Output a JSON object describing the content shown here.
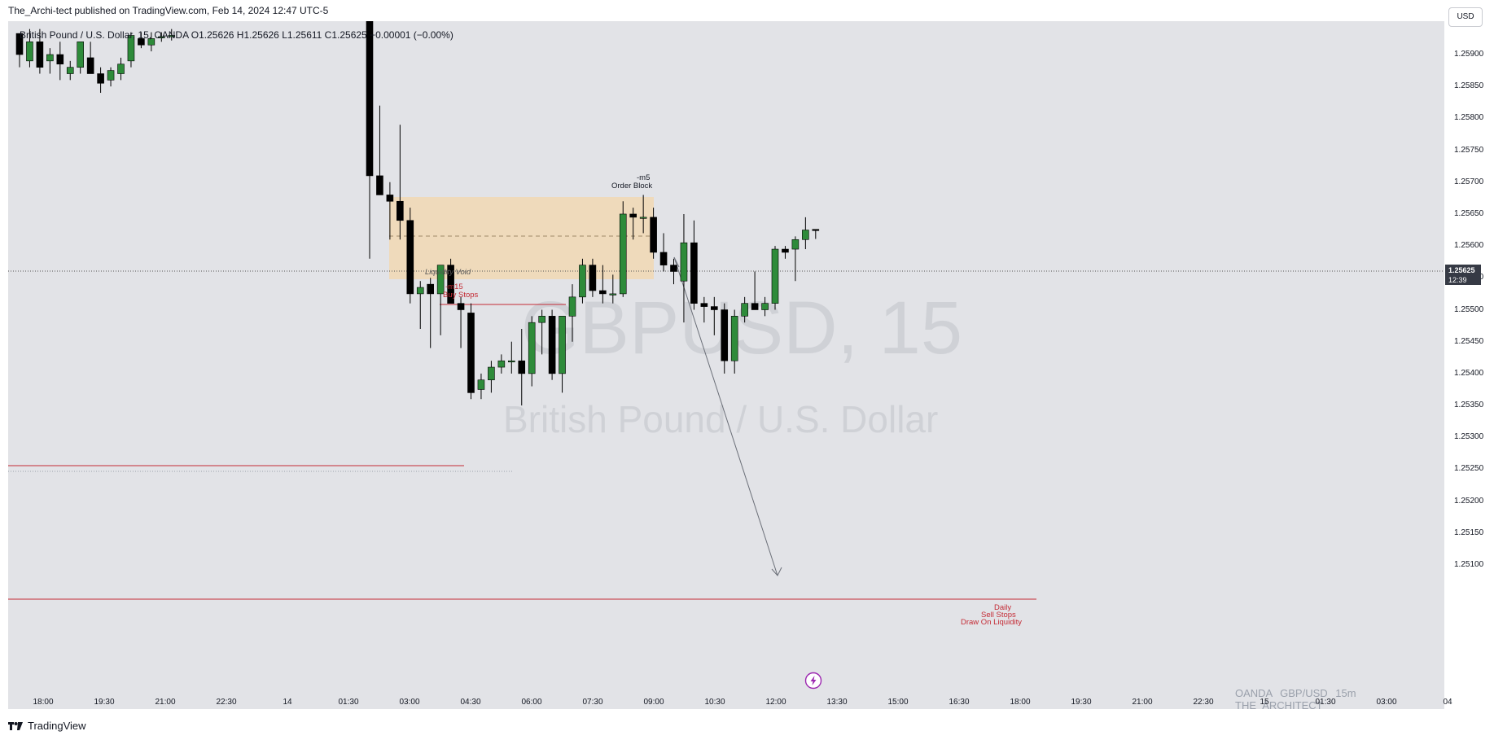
{
  "header": {
    "published_by": "The_Archi-tect published on TradingView.com, Feb 14, 2024 12:47 UTC-5"
  },
  "legend": {
    "symbol": "British Pound / U.S. Dollar, 15, OANDA",
    "ohlc": "O1.25626 H1.25626 L1.25611 C1.25625",
    "change": "−0.00001 (−0.00%)"
  },
  "price_scale": {
    "currency_button": "USD",
    "ticks": [
      "1.25900",
      "1.25850",
      "1.25800",
      "1.25750",
      "1.25700",
      "1.25650",
      "1.25600",
      "1.25550",
      "1.25500",
      "1.25450",
      "1.25400",
      "1.25350",
      "1.25300",
      "1.25250",
      "1.25200",
      "1.25150",
      "1.25100"
    ],
    "current_price": "1.25625",
    "countdown": "12:39"
  },
  "time_scale": {
    "ticks": [
      "18:00",
      "19:30",
      "21:00",
      "22:30",
      "14",
      "01:30",
      "03:00",
      "04:30",
      "06:00",
      "07:30",
      "09:00",
      "10:30",
      "12:00",
      "13:30",
      "15:00",
      "16:30",
      "18:00",
      "19:30",
      "21:00",
      "22:30",
      "15",
      "01:30",
      "03:00",
      "04"
    ]
  },
  "watermark": {
    "symbol": "GBPUSD, 15",
    "description": "British Pound / U.S. Dollar"
  },
  "annotations": {
    "order_block_tf": "-m5",
    "order_block": "Order Block",
    "liquidity_void": "Liquidity Void",
    "buy_stops_tf": "-m15",
    "buy_stops": "Buy Stops",
    "daily": "Daily",
    "sell_stops": "Sell Stops",
    "draw_on_liquidity": "Draw On Liquidity"
  },
  "branding": {
    "chart_tag": "OANDA   GBP/USD 15m   THE_ARCHITECT",
    "footer_logo": "TradingView"
  },
  "colors": {
    "background": "#e2e3e7",
    "bull": "#2e8b3a",
    "bear": "#000000",
    "level_red": "#c42b35",
    "order_block_fill": "#f2d7b0"
  },
  "chart_data": {
    "type": "candlestick",
    "series": [
      {
        "o": 1.25933,
        "h": 1.25933,
        "l": 1.2588,
        "c": 1.259
      },
      {
        "o": 1.2589,
        "h": 1.2594,
        "l": 1.2588,
        "c": 1.2592
      },
      {
        "o": 1.2592,
        "h": 1.2594,
        "l": 1.2587,
        "c": 1.2588
      },
      {
        "o": 1.2589,
        "h": 1.2591,
        "l": 1.2587,
        "c": 1.259
      },
      {
        "o": 1.259,
        "h": 1.2592,
        "l": 1.2586,
        "c": 1.25885
      },
      {
        "o": 1.2587,
        "h": 1.2589,
        "l": 1.2586,
        "c": 1.2588
      },
      {
        "o": 1.2588,
        "h": 1.2592,
        "l": 1.2587,
        "c": 1.2592
      },
      {
        "o": 1.25895,
        "h": 1.2592,
        "l": 1.2588,
        "c": 1.2587
      },
      {
        "o": 1.2587,
        "h": 1.2588,
        "l": 1.2584,
        "c": 1.25855
      },
      {
        "o": 1.2586,
        "h": 1.2588,
        "l": 1.2585,
        "c": 1.25875
      },
      {
        "o": 1.2587,
        "h": 1.25895,
        "l": 1.2586,
        "c": 1.25885
      },
      {
        "o": 1.2589,
        "h": 1.25935,
        "l": 1.2588,
        "c": 1.2593
      },
      {
        "o": 1.25925,
        "h": 1.25935,
        "l": 1.2591,
        "c": 1.25915
      },
      {
        "o": 1.25915,
        "h": 1.25935,
        "l": 1.25905,
        "c": 1.25925
      },
      {
        "o": 1.25928,
        "h": 1.25935,
        "l": 1.2592,
        "c": 1.25928
      },
      {
        "o": 1.25928,
        "h": 1.2594,
        "l": 1.25922,
        "c": 1.2593
      },
      {
        "o": 1.2596,
        "h": 1.25975,
        "l": 1.2558,
        "c": 1.2571
      },
      {
        "o": 1.2571,
        "h": 1.2582,
        "l": 1.2568,
        "c": 1.2568
      },
      {
        "o": 1.2568,
        "h": 1.257,
        "l": 1.2561,
        "c": 1.2567
      },
      {
        "o": 1.2567,
        "h": 1.2579,
        "l": 1.2561,
        "c": 1.2564
      },
      {
        "o": 1.2564,
        "h": 1.2566,
        "l": 1.2551,
        "c": 1.25525
      },
      {
        "o": 1.25525,
        "h": 1.25545,
        "l": 1.2547,
        "c": 1.25535
      },
      {
        "o": 1.2554,
        "h": 1.2555,
        "l": 1.2544,
        "c": 1.25525
      },
      {
        "o": 1.25525,
        "h": 1.2555,
        "l": 1.2546,
        "c": 1.2557
      },
      {
        "o": 1.2557,
        "h": 1.2558,
        "l": 1.2552,
        "c": 1.2551
      },
      {
        "o": 1.2551,
        "h": 1.2552,
        "l": 1.2544,
        "c": 1.255
      },
      {
        "o": 1.25495,
        "h": 1.2551,
        "l": 1.2536,
        "c": 1.2537
      },
      {
        "o": 1.25375,
        "h": 1.254,
        "l": 1.2536,
        "c": 1.2539
      },
      {
        "o": 1.2539,
        "h": 1.2542,
        "l": 1.2537,
        "c": 1.2541
      },
      {
        "o": 1.2541,
        "h": 1.2543,
        "l": 1.254,
        "c": 1.2542
      },
      {
        "o": 1.2542,
        "h": 1.2545,
        "l": 1.254,
        "c": 1.2542
      },
      {
        "o": 1.2542,
        "h": 1.2547,
        "l": 1.2535,
        "c": 1.254
      },
      {
        "o": 1.254,
        "h": 1.2549,
        "l": 1.2538,
        "c": 1.2548
      },
      {
        "o": 1.2548,
        "h": 1.255,
        "l": 1.2543,
        "c": 1.2549
      },
      {
        "o": 1.2549,
        "h": 1.255,
        "l": 1.2539,
        "c": 1.254
      },
      {
        "o": 1.254,
        "h": 1.2548,
        "l": 1.2537,
        "c": 1.2549
      },
      {
        "o": 1.2549,
        "h": 1.2554,
        "l": 1.2545,
        "c": 1.2552
      },
      {
        "o": 1.2552,
        "h": 1.2558,
        "l": 1.2551,
        "c": 1.2557
      },
      {
        "o": 1.2557,
        "h": 1.2558,
        "l": 1.2552,
        "c": 1.2553
      },
      {
        "o": 1.2553,
        "h": 1.2557,
        "l": 1.2551,
        "c": 1.25525
      },
      {
        "o": 1.25525,
        "h": 1.25555,
        "l": 1.2551,
        "c": 1.25525
      },
      {
        "o": 1.25525,
        "h": 1.2567,
        "l": 1.2552,
        "c": 1.2565
      },
      {
        "o": 1.2565,
        "h": 1.2566,
        "l": 1.2561,
        "c": 1.25645
      },
      {
        "o": 1.25645,
        "h": 1.2568,
        "l": 1.2562,
        "c": 1.25645
      },
      {
        "o": 1.25645,
        "h": 1.2566,
        "l": 1.2558,
        "c": 1.2559
      },
      {
        "o": 1.2559,
        "h": 1.2562,
        "l": 1.2556,
        "c": 1.2557
      },
      {
        "o": 1.2557,
        "h": 1.2558,
        "l": 1.2554,
        "c": 1.2556
      },
      {
        "o": 1.25545,
        "h": 1.2565,
        "l": 1.2548,
        "c": 1.25605
      },
      {
        "o": 1.25605,
        "h": 1.2564,
        "l": 1.255,
        "c": 1.2551
      },
      {
        "o": 1.2551,
        "h": 1.2552,
        "l": 1.2548,
        "c": 1.25505
      },
      {
        "o": 1.25505,
        "h": 1.2552,
        "l": 1.2546,
        "c": 1.255
      },
      {
        "o": 1.255,
        "h": 1.2551,
        "l": 1.254,
        "c": 1.2542
      },
      {
        "o": 1.2542,
        "h": 1.255,
        "l": 1.254,
        "c": 1.2549
      },
      {
        "o": 1.2549,
        "h": 1.2552,
        "l": 1.2548,
        "c": 1.2551
      },
      {
        "o": 1.2551,
        "h": 1.2556,
        "l": 1.255,
        "c": 1.255
      },
      {
        "o": 1.255,
        "h": 1.2552,
        "l": 1.2549,
        "c": 1.2551
      },
      {
        "o": 1.2551,
        "h": 1.256,
        "l": 1.255,
        "c": 1.25595
      },
      {
        "o": 1.25595,
        "h": 1.256,
        "l": 1.2558,
        "c": 1.2559
      },
      {
        "o": 1.25595,
        "h": 1.25615,
        "l": 1.25545,
        "c": 1.2561
      },
      {
        "o": 1.2561,
        "h": 1.25645,
        "l": 1.25595,
        "c": 1.25625
      },
      {
        "o": 1.25626,
        "h": 1.25626,
        "l": 1.25611,
        "c": 1.25625
      }
    ]
  }
}
